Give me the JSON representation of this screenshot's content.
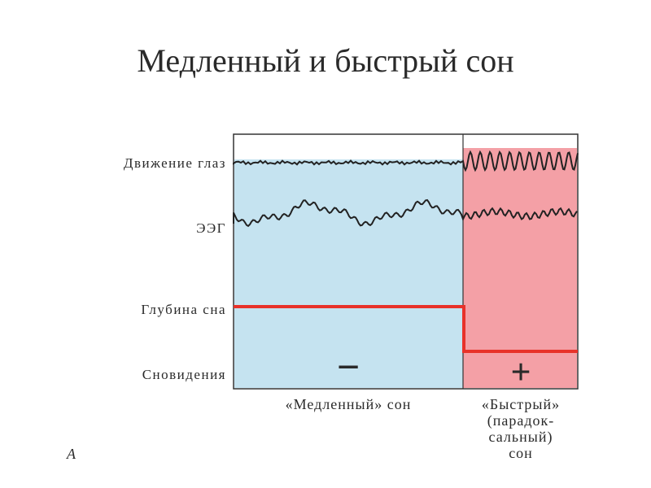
{
  "title": "Медленный и быстрый сон",
  "row_labels": [
    "Движение глаз",
    "ЭЭГ",
    "Глубина сна",
    "Сновидения"
  ],
  "phases": [
    {
      "label_lines": [
        "«Медленный» сон"
      ],
      "sign": "−"
    },
    {
      "label_lines": [
        "«Быстрый»",
        "(парадок-",
        "сальный)",
        "сон"
      ],
      "sign": "+"
    }
  ],
  "figure_letter": "A"
}
